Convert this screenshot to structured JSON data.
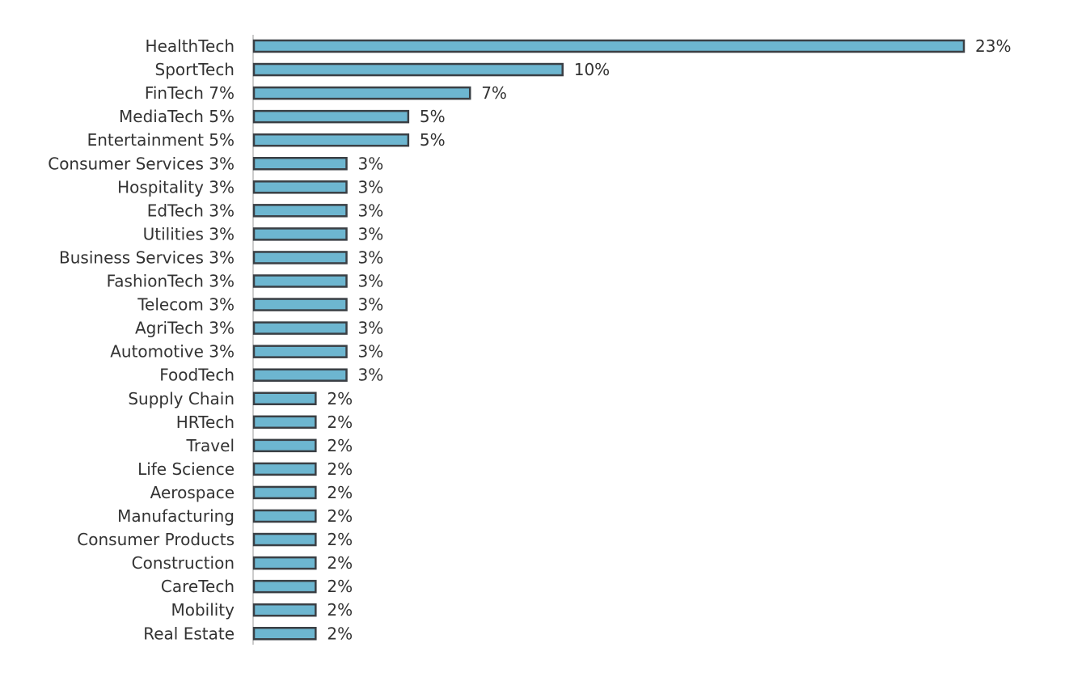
{
  "chart_data": {
    "type": "bar",
    "orientation": "horizontal",
    "categories": [
      "HealthTech",
      "SportTech",
      "FinTech 7%",
      "MediaTech 5%",
      "Entertainment 5%",
      "Consumer Services 3%",
      "Hospitality 3%",
      "EdTech 3%",
      "Utilities 3%",
      "Business Services 3%",
      "FashionTech 3%",
      "Telecom 3%",
      "AgriTech 3%",
      "Automotive 3%",
      "FoodTech",
      "Supply Chain",
      "HRTech",
      "Travel",
      "Life Science",
      "Aerospace",
      "Manufacturing",
      "Consumer Products",
      "Construction",
      "CareTech",
      "Mobility",
      "Real Estate"
    ],
    "values": [
      23,
      10,
      7,
      5,
      5,
      3,
      3,
      3,
      3,
      3,
      3,
      3,
      3,
      3,
      3,
      2,
      2,
      2,
      2,
      2,
      2,
      2,
      2,
      2,
      2,
      2
    ],
    "value_labels": [
      "23%",
      "10%",
      "7%",
      "5%",
      "5%",
      "3%",
      "3%",
      "3%",
      "3%",
      "3%",
      "3%",
      "3%",
      "3%",
      "3%",
      "3%",
      "2%",
      "2%",
      "2%",
      "2%",
      "2%",
      "2%",
      "2%",
      "2%",
      "2%",
      "2%",
      "2%"
    ],
    "title": "",
    "xlabel": "",
    "ylabel": "",
    "xlim": [
      0,
      23
    ],
    "grid": false,
    "legend": "none",
    "bar_color": "#6db6d0",
    "bar_edge_color": "#3a3f44"
  }
}
